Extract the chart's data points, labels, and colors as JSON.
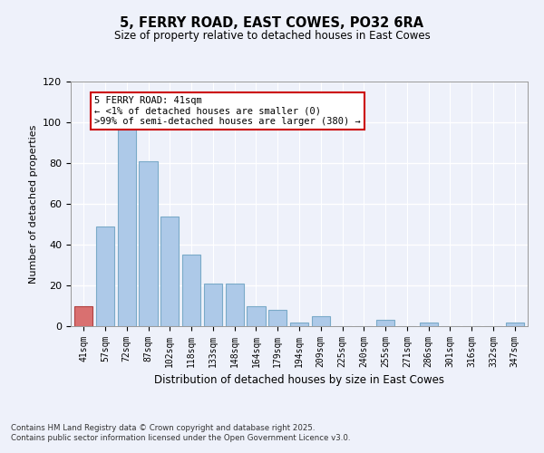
{
  "title": "5, FERRY ROAD, EAST COWES, PO32 6RA",
  "subtitle": "Size of property relative to detached houses in East Cowes",
  "xlabel": "Distribution of detached houses by size in East Cowes",
  "ylabel": "Number of detached properties",
  "categories": [
    "41sqm",
    "57sqm",
    "72sqm",
    "87sqm",
    "102sqm",
    "118sqm",
    "133sqm",
    "148sqm",
    "164sqm",
    "179sqm",
    "194sqm",
    "209sqm",
    "225sqm",
    "240sqm",
    "255sqm",
    "271sqm",
    "286sqm",
    "301sqm",
    "316sqm",
    "332sqm",
    "347sqm"
  ],
  "values": [
    10,
    49,
    100,
    81,
    54,
    35,
    21,
    21,
    10,
    8,
    2,
    5,
    0,
    0,
    3,
    0,
    2,
    0,
    0,
    0,
    2
  ],
  "highlight_index": 0,
  "bar_color": "#adc9e8",
  "highlight_color": "#d97070",
  "bar_edge_color": "#7aaac8",
  "highlight_edge_color": "#b04040",
  "ylim": [
    0,
    120
  ],
  "yticks": [
    0,
    20,
    40,
    60,
    80,
    100,
    120
  ],
  "annotation_title": "5 FERRY ROAD: 41sqm",
  "annotation_line1": "← <1% of detached houses are smaller (0)",
  "annotation_line2": ">99% of semi-detached houses are larger (380) →",
  "footer_line1": "Contains HM Land Registry data © Crown copyright and database right 2025.",
  "footer_line2": "Contains public sector information licensed under the Open Government Licence v3.0.",
  "background_color": "#eef1fa",
  "grid_color": "#ffffff",
  "annotation_box_bg": "#ffffff",
  "annotation_box_edge": "#cc0000"
}
